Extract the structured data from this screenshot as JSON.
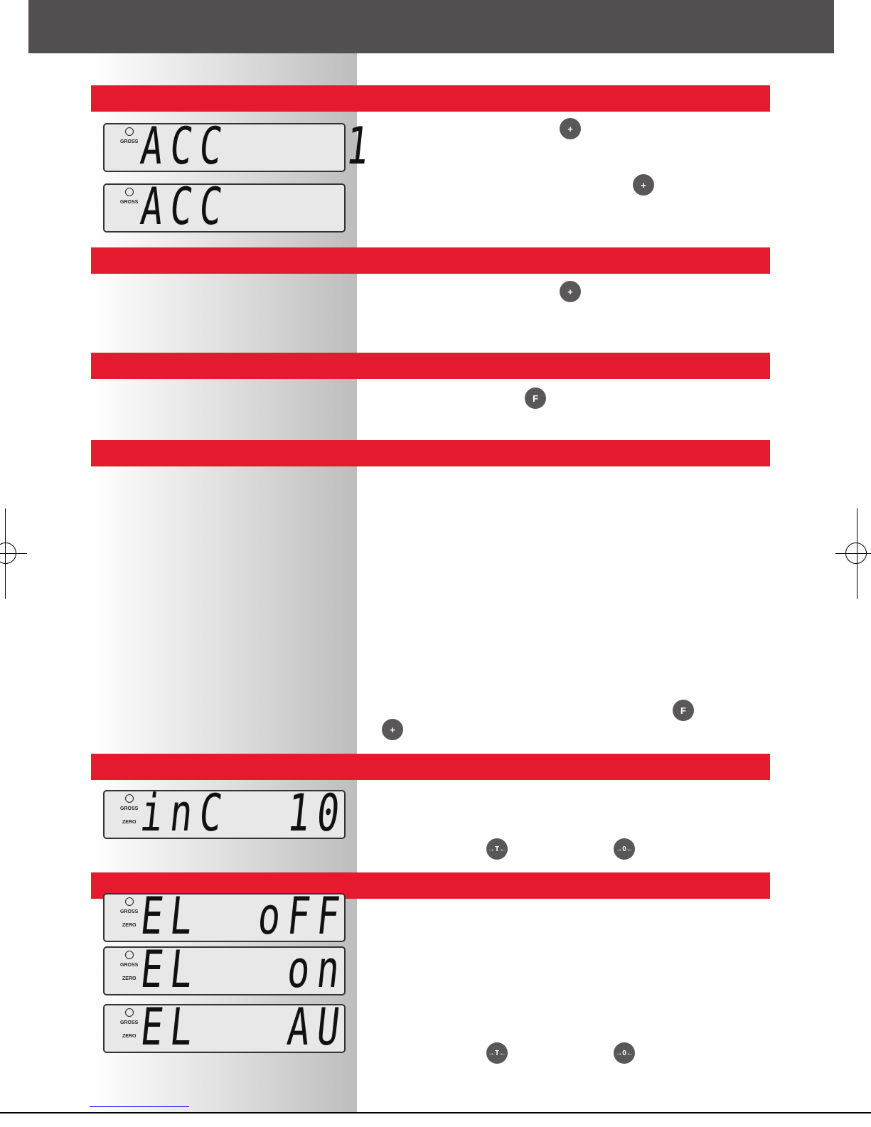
{
  "colors": {
    "header": "#524f50",
    "section_bar": "#e51a2e",
    "button": "#5a5758"
  },
  "buttons": {
    "plus": "+",
    "function": "F",
    "tare": "→T←",
    "zero": "→0←"
  },
  "lcd_labels": {
    "gross": "GROSS",
    "zero": "ZERO"
  },
  "displays": [
    {
      "text": "ACC    1"
    },
    {
      "text": "ACC"
    },
    {
      "text": "inC  10"
    },
    {
      "text": "EL  oFF"
    },
    {
      "text": "EL   on"
    },
    {
      "text": "EL   AU"
    }
  ]
}
